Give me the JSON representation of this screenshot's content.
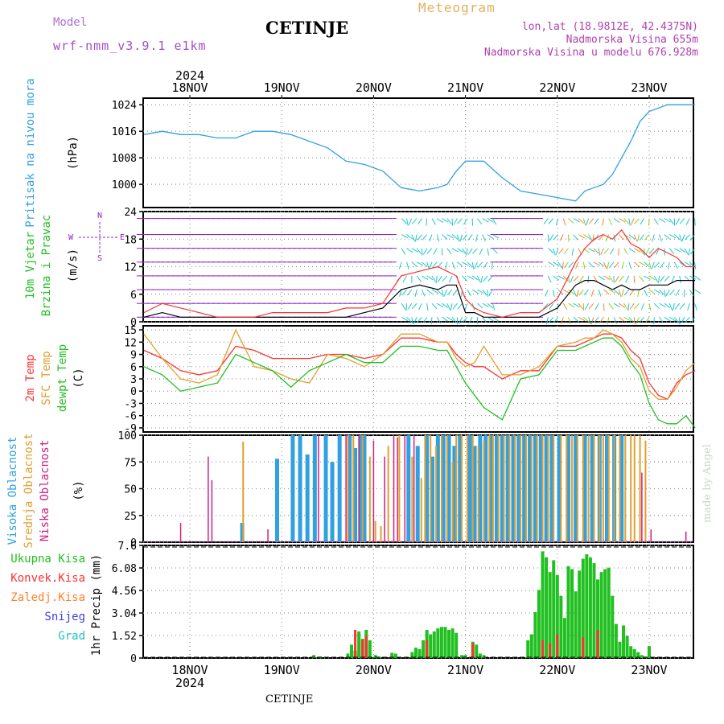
{
  "header": {
    "title": "CETINJE",
    "model_label": "Model",
    "model_name": "wrf-nmm_v3.9.1 e1km",
    "meteogram_label": "Meteogram",
    "lonlat": "lon,lat (18.9812E, 42.4375N)",
    "elevation": "Nadmorska Visina 655m",
    "model_elevation": "Nadmorska Visina u modelu 676.928m"
  },
  "footer": {
    "station": "CETINJE",
    "made_by": "made by Angel"
  },
  "axis": {
    "top_year": "2024",
    "bottom_year": "2024",
    "days": [
      "18NOV",
      "19NOV",
      "20NOV",
      "21NOV",
      "22NOV",
      "23NOV"
    ]
  },
  "colors": {
    "pressure": "#30a0e0",
    "wind_speed": "#000000",
    "gust": "#ff3030",
    "temp2m": "#ff3030",
    "sfc_temp": "#e0a030",
    "dewpoint": "#20c020",
    "high_cloud": "#30a0e0",
    "mid_cloud": "#e0a030",
    "low_cloud": "#d02080",
    "total_precip": "#20c020",
    "conv_precip": "#ff3030",
    "frozen_precip": "#ff8030",
    "snow": "#4040e0",
    "hail": "#20c0c0",
    "wind_purple": "#9020c0",
    "wind_cyan": "#20c8c8"
  },
  "chart_data": [
    {
      "type": "line",
      "id": "pressure",
      "ylabel": [
        "Pritisak na nivou mora",
        "(hPa)"
      ],
      "yticks": [
        1000,
        1008,
        1016,
        1024
      ],
      "ylim": [
        993,
        1026
      ],
      "grid": true,
      "series": [
        {
          "name": "Pritisak na nivou mora",
          "x": [
            -0.5,
            -0.3,
            -0.1,
            0.1,
            0.3,
            0.5,
            0.7,
            0.9,
            1.1,
            1.3,
            1.5,
            1.7,
            1.9,
            2.1,
            2.3,
            2.5,
            2.7,
            2.8,
            2.9,
            3.0,
            3.1,
            3.2,
            3.4,
            3.6,
            3.8,
            4.0,
            4.2,
            4.3,
            4.4,
            4.5,
            4.6,
            4.7,
            4.8,
            4.9,
            5.0,
            5.1,
            5.2,
            5.3,
            5.4,
            5.5
          ],
          "values": [
            1015,
            1016,
            1015,
            1015,
            1014,
            1014,
            1016,
            1016,
            1015,
            1013,
            1011,
            1007,
            1006,
            1004,
            999,
            998,
            999,
            1000,
            1004,
            1007,
            1007,
            1007,
            1002,
            998,
            997,
            996,
            995,
            998,
            999,
            1000,
            1003,
            1008,
            1013,
            1019,
            1022,
            1023,
            1024,
            1024,
            1024,
            1024
          ]
        }
      ]
    },
    {
      "type": "line",
      "id": "wind",
      "ylabel": [
        "10m Vjetar",
        "Brzina i Pravac",
        "(m/s)"
      ],
      "compass": [
        "N",
        "E",
        "W",
        "S"
      ],
      "yticks": [
        0,
        6,
        12,
        18,
        24
      ],
      "ylim": [
        0,
        24
      ],
      "grid": true,
      "series": [
        {
          "name": "speed",
          "x": [
            -0.5,
            -0.3,
            -0.1,
            0.1,
            0.3,
            0.5,
            0.7,
            0.9,
            1.1,
            1.3,
            1.5,
            1.7,
            1.9,
            2.1,
            2.3,
            2.5,
            2.7,
            2.8,
            2.9,
            3.0,
            3.1,
            3.2,
            3.4,
            3.6,
            3.8,
            4.0,
            4.2,
            4.3,
            4.4,
            4.5,
            4.6,
            4.7,
            4.8,
            4.9,
            5.0,
            5.1,
            5.2,
            5.3,
            5.4,
            5.5
          ],
          "values": [
            1,
            2,
            1,
            1,
            1,
            1,
            1,
            1,
            1,
            1,
            1,
            1,
            2,
            3,
            7,
            8,
            7,
            8,
            8,
            2,
            2,
            1,
            1,
            1,
            1,
            3,
            8,
            9,
            9,
            8,
            7,
            8,
            7,
            7,
            8,
            8,
            8,
            9,
            9,
            9
          ]
        },
        {
          "name": "gust",
          "x": [
            -0.5,
            -0.3,
            -0.1,
            0.1,
            0.3,
            0.5,
            0.7,
            0.9,
            1.1,
            1.3,
            1.5,
            1.7,
            1.9,
            2.1,
            2.3,
            2.5,
            2.7,
            2.8,
            2.9,
            3.0,
            3.1,
            3.2,
            3.4,
            3.6,
            3.8,
            4.0,
            4.2,
            4.3,
            4.4,
            4.5,
            4.6,
            4.7,
            4.8,
            4.9,
            5.0,
            5.1,
            5.2,
            5.3,
            5.4,
            5.5
          ],
          "values": [
            2,
            4,
            3,
            2,
            1,
            1,
            1,
            2,
            2,
            2,
            2,
            3,
            3,
            4,
            10,
            11,
            12,
            11,
            10,
            5,
            3,
            2,
            1,
            2,
            2,
            5,
            13,
            16,
            18,
            19,
            18,
            20,
            17,
            16,
            14,
            16,
            15,
            14,
            12,
            12
          ]
        }
      ]
    },
    {
      "type": "line",
      "id": "temperature",
      "ylabel": [
        "2m Temp",
        "SFC Temp",
        "dewpt Temp",
        "(C)"
      ],
      "yticks": [
        -9,
        -6,
        -3,
        0,
        3,
        6,
        9,
        12,
        15
      ],
      "ylim": [
        -10,
        16
      ],
      "grid": true,
      "series": [
        {
          "name": "2m Temp",
          "x": [
            -0.5,
            -0.3,
            -0.1,
            0.1,
            0.3,
            0.5,
            0.7,
            0.9,
            1.1,
            1.3,
            1.5,
            1.7,
            1.9,
            2.1,
            2.3,
            2.5,
            2.7,
            2.8,
            2.9,
            3.0,
            3.1,
            3.2,
            3.4,
            3.6,
            3.8,
            4.0,
            4.2,
            4.3,
            4.4,
            4.5,
            4.6,
            4.7,
            4.8,
            4.9,
            5.0,
            5.1,
            5.2,
            5.3,
            5.4,
            5.5
          ],
          "values": [
            10,
            8,
            5,
            4,
            5,
            11,
            10,
            8,
            8,
            8,
            9,
            9,
            8,
            9,
            13,
            13,
            12,
            12,
            9,
            7,
            6,
            6,
            3,
            5,
            5,
            11,
            11,
            12,
            13,
            14,
            14,
            13,
            10,
            8,
            2,
            -1,
            -2,
            2,
            4,
            5
          ]
        },
        {
          "name": "SFC Temp",
          "x": [
            -0.5,
            -0.3,
            -0.1,
            0.1,
            0.3,
            0.5,
            0.7,
            0.9,
            1.1,
            1.3,
            1.5,
            1.7,
            1.9,
            2.1,
            2.3,
            2.5,
            2.7,
            2.8,
            2.9,
            3.0,
            3.1,
            3.2,
            3.4,
            3.6,
            3.8,
            4.0,
            4.2,
            4.3,
            4.4,
            4.5,
            4.6,
            4.7,
            4.8,
            4.9,
            5.0,
            5.1,
            5.2,
            5.3,
            5.4,
            5.5
          ],
          "values": [
            14,
            8,
            3,
            2,
            4,
            15,
            6,
            5,
            3,
            2,
            9,
            8,
            6,
            9,
            14,
            14,
            12,
            12,
            8,
            6,
            7,
            11,
            4,
            4,
            6,
            11,
            12,
            13,
            13,
            15,
            14,
            12,
            8,
            6,
            0,
            -2,
            -2,
            1,
            5,
            7
          ]
        },
        {
          "name": "dewpt Temp",
          "x": [
            -0.5,
            -0.3,
            -0.1,
            0.1,
            0.3,
            0.5,
            0.7,
            0.9,
            1.1,
            1.3,
            1.5,
            1.7,
            1.9,
            2.1,
            2.3,
            2.5,
            2.7,
            2.8,
            2.9,
            3.0,
            3.1,
            3.2,
            3.4,
            3.6,
            3.8,
            4.0,
            4.2,
            4.3,
            4.4,
            4.5,
            4.6,
            4.7,
            4.8,
            4.9,
            5.0,
            5.1,
            5.2,
            5.3,
            5.4,
            5.5
          ],
          "values": [
            6,
            4,
            0,
            1,
            2,
            9,
            7,
            5,
            1,
            5,
            7,
            9,
            7,
            7,
            11,
            11,
            10,
            10,
            6,
            2,
            -1,
            -4,
            -7,
            3,
            4,
            10,
            10,
            11,
            12,
            13,
            13,
            11,
            7,
            4,
            -3,
            -7,
            -8,
            -8,
            -6,
            -9
          ]
        }
      ]
    },
    {
      "type": "bar",
      "id": "cloud",
      "ylabel": [
        "Visoka Oblacnost",
        "Srednja Oblacnost",
        "Niska Oblacnost",
        "(%)"
      ],
      "yticks": [
        0,
        25,
        50,
        75,
        100
      ],
      "ylim": [
        0,
        100
      ],
      "grid": true,
      "series": [
        {
          "name": "Visoka Oblacnost",
          "x": [
            0.57,
            0.95,
            1.12,
            1.2,
            1.28,
            1.36,
            1.48,
            1.55,
            1.63,
            1.74,
            1.8,
            1.86,
            1.9,
            2.38,
            2.48,
            2.58,
            2.64,
            2.7,
            2.76,
            2.82,
            2.88,
            2.94,
            3.05,
            3.1,
            3.16,
            3.22,
            3.28,
            3.34,
            3.4,
            3.46,
            3.52,
            3.58,
            3.64,
            3.7,
            3.76,
            3.82,
            3.88,
            3.94,
            4.02,
            4.12,
            4.2,
            4.3,
            4.38,
            4.46,
            4.54,
            4.62,
            4.7
          ],
          "values": [
            18,
            78,
            100,
            100,
            82,
            100,
            100,
            75,
            100,
            100,
            88,
            100,
            100,
            100,
            90,
            100,
            80,
            100,
            100,
            100,
            90,
            100,
            100,
            90,
            100,
            100,
            100,
            100,
            100,
            100,
            100,
            100,
            100,
            100,
            100,
            100,
            100,
            100,
            100,
            100,
            100,
            100,
            100,
            100,
            100,
            100,
            100
          ]
        },
        {
          "name": "Srednja Oblacnost",
          "x": [
            0.58,
            1.72,
            1.78,
            1.88,
            1.96,
            2.02,
            2.08,
            2.16,
            2.28,
            2.42,
            2.52,
            2.56,
            2.62,
            2.68,
            2.74,
            2.8,
            2.86,
            2.9,
            2.96,
            3.02,
            3.08,
            3.14,
            3.2,
            3.26,
            3.3,
            3.36,
            3.42,
            3.48,
            3.54,
            3.6,
            3.66,
            3.72,
            3.78,
            3.84,
            3.9,
            3.96,
            4.04,
            4.1,
            4.16,
            4.22,
            4.28,
            4.34,
            4.4,
            4.46,
            4.5,
            4.56,
            4.62,
            4.68,
            4.74,
            4.8,
            4.84,
            4.9,
            4.96
          ],
          "values": [
            94,
            100,
            100,
            100,
            80,
            20,
            15,
            90,
            100,
            80,
            60,
            100,
            100,
            90,
            100,
            100,
            75,
            100,
            100,
            100,
            100,
            90,
            95,
            100,
            100,
            100,
            100,
            100,
            100,
            100,
            100,
            100,
            100,
            100,
            100,
            100,
            100,
            100,
            100,
            100,
            100,
            100,
            100,
            100,
            100,
            100,
            100,
            100,
            100,
            100,
            100,
            100,
            95
          ]
        },
        {
          "name": "Niska Oblacnost",
          "x": [
            -0.1,
            0.2,
            0.24,
            0.85,
            1.4,
            1.7,
            1.84,
            2.0,
            2.12,
            2.22,
            2.26,
            2.34,
            2.44,
            4.92,
            5.02,
            5.4
          ],
          "values": [
            18,
            80,
            58,
            12,
            100,
            100,
            100,
            95,
            80,
            100,
            98,
            100,
            100,
            65,
            12,
            10
          ]
        }
      ]
    },
    {
      "type": "bar",
      "id": "precipitation",
      "ylabel": [
        "Ukupna Kisa",
        "Konvek.Kisa",
        "Zaledj.Kisa",
        "Snijeg",
        "Grad",
        "1hr Precip (mm)"
      ],
      "yticks": [
        0,
        1.52,
        3.04,
        4.56,
        6.08,
        7.6
      ],
      "ylim": [
        0,
        7.6
      ],
      "grid": true,
      "series": [
        {
          "name": "Ukupna Kisa",
          "x": [
            1.35,
            1.42,
            1.72,
            1.76,
            1.8,
            1.84,
            1.88,
            1.92,
            1.96,
            2.02,
            2.06,
            2.2,
            2.24,
            2.42,
            2.46,
            2.5,
            2.54,
            2.58,
            2.62,
            2.66,
            2.7,
            2.74,
            2.78,
            2.82,
            2.86,
            2.9,
            2.96,
            3.0,
            3.08,
            3.12,
            3.16,
            3.2,
            3.68,
            3.72,
            3.76,
            3.8,
            3.84,
            3.88,
            3.92,
            3.96,
            4.0,
            4.04,
            4.08,
            4.12,
            4.16,
            4.2,
            4.24,
            4.28,
            4.32,
            4.36,
            4.4,
            4.44,
            4.48,
            4.52,
            4.56,
            4.6,
            4.64,
            4.68,
            4.72,
            4.76,
            4.8,
            4.84,
            4.88,
            4.92,
            4.96,
            5.0
          ],
          "values": [
            0.2,
            0.1,
            0.3,
            0.9,
            0.5,
            1.8,
            1.3,
            1.9,
            1.2,
            0.2,
            0.1,
            0.35,
            0.3,
            0.4,
            0.7,
            0.6,
            1.2,
            1.9,
            1.6,
            1.8,
            2.0,
            2.1,
            2.1,
            1.9,
            2.0,
            1.7,
            0.2,
            0.2,
            1.1,
            0.9,
            0.3,
            0.2,
            1.2,
            1.6,
            3.1,
            4.6,
            7.2,
            6.8,
            5.8,
            6.6,
            5.6,
            4.2,
            2.7,
            6.2,
            6.0,
            4.5,
            5.9,
            6.7,
            7.0,
            6.8,
            6.4,
            5.3,
            5.8,
            6.0,
            6.1,
            4.2,
            2.3,
            1.1,
            2.2,
            1.5,
            0.8,
            0.6,
            0.4,
            0.2,
            0.1,
            0.8
          ]
        },
        {
          "name": "Konvek.Kisa",
          "x": [
            1.8,
            1.88,
            1.92,
            2.58,
            3.08,
            3.84,
            3.92,
            4.0,
            4.28,
            4.44
          ],
          "values": [
            1.9,
            1.2,
            1.5,
            1.2,
            1.0,
            1.2,
            1.0,
            1.6,
            1.4,
            1.9
          ]
        }
      ]
    }
  ]
}
